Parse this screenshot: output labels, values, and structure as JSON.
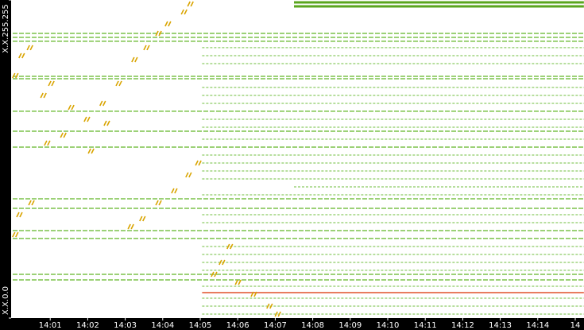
{
  "chart_data": {
    "type": "flows",
    "xlim": [
      0,
      15.23
    ],
    "ylim": [
      0,
      255
    ],
    "xticks": [
      {
        "value": 1,
        "label": "14:01"
      },
      {
        "value": 2,
        "label": "14:02"
      },
      {
        "value": 3,
        "label": "14:03"
      },
      {
        "value": 4,
        "label": "14:04"
      },
      {
        "value": 5,
        "label": "14:05"
      },
      {
        "value": 6,
        "label": "14:06"
      },
      {
        "value": 7,
        "label": "14:07"
      },
      {
        "value": 8,
        "label": "14:08"
      },
      {
        "value": 9,
        "label": "14:09"
      },
      {
        "value": 10,
        "label": "14:10"
      },
      {
        "value": 11,
        "label": "14:11"
      },
      {
        "value": 12,
        "label": "14:12"
      },
      {
        "value": 13,
        "label": "14:13"
      },
      {
        "value": 14,
        "label": "14:14"
      },
      {
        "value": 15,
        "label": "14"
      }
    ],
    "yticks": [
      {
        "value": 0,
        "label": "X.X.0.0"
      },
      {
        "value": 255,
        "label": "X.X.255.255"
      }
    ],
    "flows": [
      {
        "color": "#7cc24a",
        "y": [
          228.2,
          225.0,
          221.9,
          193.8,
          191.9,
          165.8,
          149.8,
          137.1,
          95.6,
          88.0,
          70.1,
          63.8,
          35.1,
          30.6
        ],
        "x_start": [
          0,
          0,
          0,
          0,
          0,
          0,
          0,
          0,
          0,
          0,
          0,
          0,
          0,
          0
        ],
        "x_end": [
          15.23,
          15.23,
          15.23,
          15.23,
          15.23,
          15.23,
          15.23,
          15.23,
          15.23,
          15.23,
          15.23,
          15.23,
          15.23,
          15.23
        ]
      },
      {
        "color": "#9fd47e",
        "y": [
          216.8,
          210.4,
          204.0,
          184.9,
          178.5,
          172.1,
          159.4,
          153.0,
          143.4,
          130.7,
          124.3,
          117.9,
          111.6,
          105.2,
          98.8,
          82.9,
          76.5,
          57.4,
          51.0,
          44.6,
          38.3,
          25.5,
          15.9,
          9.6,
          3.2
        ],
        "x_start": [
          5.05,
          5.05,
          5.05,
          5.05,
          5.05,
          5.05,
          5.05,
          5.05,
          5.05,
          5.05,
          5.05,
          5.05,
          5.05,
          7.5,
          5.05,
          5.05,
          5.05,
          5.05,
          5.05,
          5.05,
          5.05,
          5.05,
          5.05,
          5.05,
          5.05
        ],
        "x_end": [
          15.23,
          15.23,
          15.23,
          15.23,
          15.23,
          15.23,
          15.23,
          15.23,
          15.23,
          15.23,
          15.23,
          15.23,
          15.23,
          15.23,
          15.23,
          15.23,
          15.23,
          15.23,
          15.23,
          15.23,
          15.23,
          15.23,
          15.23,
          15.23,
          15.23
        ]
      },
      {
        "color": "#5aa51e",
        "y": [
          253.1,
          249.9
        ],
        "x_start": [
          7.5,
          7.5
        ],
        "x_end": [
          15.23,
          15.23
        ]
      },
      {
        "color": "#e0502a",
        "y": [
          20.4
        ],
        "x_start": [
          5.05
        ],
        "x_end": [
          15.23
        ]
      }
    ],
    "points": {
      "color": "#d9a400",
      "x": [
        4.75,
        4.58,
        4.15,
        3.9,
        3.58,
        3.26,
        0.47,
        0.25,
        0.08,
        1.04,
        0.83,
        2.84,
        2.41,
        1.99,
        1.57,
        1.36,
        0.93,
        2.1,
        2.52,
        4.96,
        4.7,
        4.32,
        3.9,
        3.47,
        3.16,
        0.51,
        0.19,
        0.08,
        5.8,
        5.59,
        5.38,
        6.02,
        6.44,
        6.86,
        7.08
      ],
      "y": [
        251.8,
        245.4,
        235.9,
        228.2,
        216.8,
        207.2,
        216.8,
        210.4,
        194.4,
        188.1,
        178.5,
        188.1,
        172.1,
        159.4,
        168.9,
        146.6,
        140.3,
        133.9,
        156.2,
        124.3,
        114.8,
        102.0,
        92.4,
        79.7,
        73.3,
        92.4,
        82.9,
        66.9,
        57.4,
        44.6,
        35.1,
        28.7,
        19.1,
        9.6,
        3.2
      ]
    }
  }
}
